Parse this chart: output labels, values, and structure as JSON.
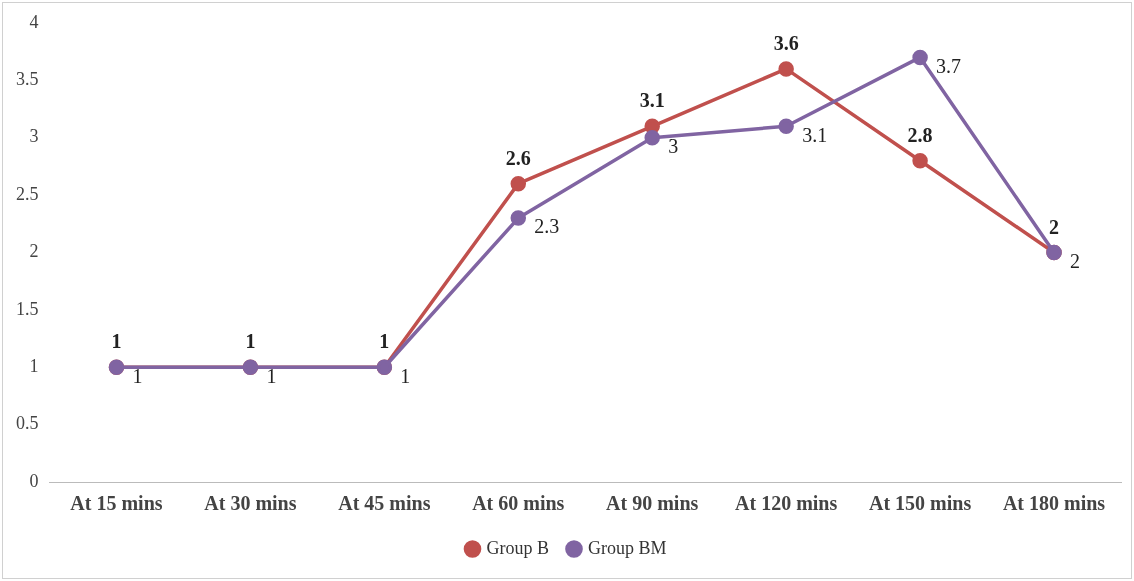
{
  "chart_data": {
    "type": "line",
    "categories": [
      "At 15 mins",
      "At 30 mins",
      "At 45 mins",
      "At 60 mins",
      "At 90 mins",
      "At 120 mins",
      "At 150 mins",
      "At 180 mins"
    ],
    "series": [
      {
        "name": "Group B",
        "color": "#c0504d",
        "values": [
          1,
          1,
          1,
          2.6,
          3.1,
          3.6,
          2.8,
          2
        ]
      },
      {
        "name": "Group BM",
        "color": "#8064a2",
        "values": [
          1,
          1,
          1,
          2.3,
          3,
          3.1,
          3.7,
          2
        ]
      }
    ],
    "ylim": [
      0,
      4
    ],
    "yticks": [
      0,
      0.5,
      1,
      1.5,
      2,
      2.5,
      3,
      3.5,
      4
    ],
    "grid": false,
    "legend": "bottom",
    "marker": "circle",
    "line_style": "solid",
    "data_labels": true
  }
}
